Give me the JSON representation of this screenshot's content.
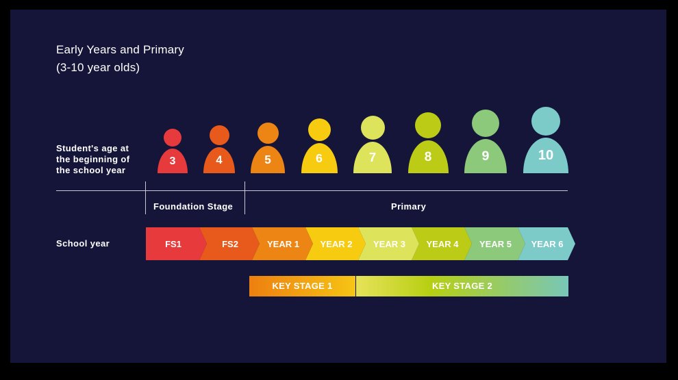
{
  "title_line1": "Early Years and Primary",
  "title_line2": "(3-10 year olds)",
  "age_label_lines": [
    "Student's age at",
    "the beginning of",
    "the school year"
  ],
  "school_year_label": "School year",
  "stages": {
    "foundation": "Foundation Stage",
    "primary": "Primary"
  },
  "ages": [
    {
      "age": "3",
      "color": "#e63a3c"
    },
    {
      "age": "4",
      "color": "#e85a1c"
    },
    {
      "age": "5",
      "color": "#ec8514"
    },
    {
      "age": "6",
      "color": "#f7cc10"
    },
    {
      "age": "7",
      "color": "#dde35b"
    },
    {
      "age": "8",
      "color": "#bccb16"
    },
    {
      "age": "9",
      "color": "#8cc97b"
    },
    {
      "age": "10",
      "color": "#7ccbc9"
    }
  ],
  "years": [
    {
      "label": "FS1",
      "color": "#e63a3c"
    },
    {
      "label": "FS2",
      "color": "#e85a1c"
    },
    {
      "label": "YEAR 1",
      "color": "#ec8514"
    },
    {
      "label": "YEAR 2",
      "color": "#f7cc10"
    },
    {
      "label": "YEAR 3",
      "color": "#dde35b"
    },
    {
      "label": "YEAR 4",
      "color": "#bccb16"
    },
    {
      "label": "YEAR 5",
      "color": "#8cc97b"
    },
    {
      "label": "YEAR 6",
      "color": "#7ccbc9"
    }
  ],
  "key_stages": {
    "ks1": "KEY STAGE 1",
    "ks2": "KEY STAGE 2"
  }
}
